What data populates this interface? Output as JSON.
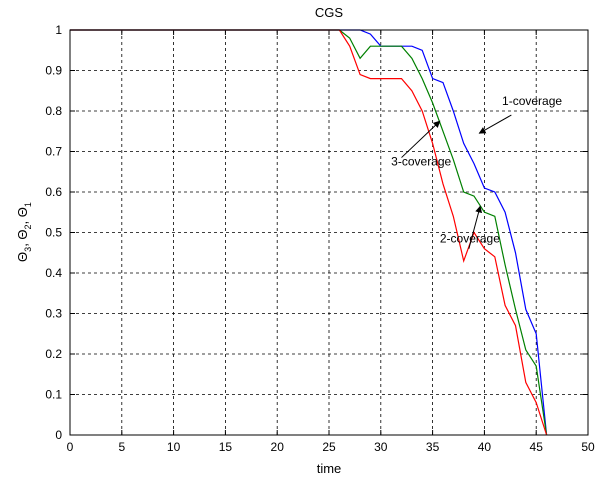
{
  "chart_data": {
    "type": "line",
    "title": "CGS",
    "xlabel": "time",
    "ylabel": "Θ3, Θ2, Θ1",
    "ylabel_parts": [
      {
        "base": "Θ",
        "sub": "3",
        "sep": ", "
      },
      {
        "base": "Θ",
        "sub": "2",
        "sep": ", "
      },
      {
        "base": "Θ",
        "sub": "1",
        "sep": ""
      }
    ],
    "xlim": [
      0,
      50
    ],
    "ylim": [
      0,
      1
    ],
    "xticks": [
      "0",
      "5",
      "10",
      "15",
      "20",
      "25",
      "30",
      "35",
      "40",
      "45",
      "50"
    ],
    "yticks": [
      "0",
      "0.1",
      "0.2",
      "0.3",
      "0.4",
      "0.5",
      "0.6",
      "0.7",
      "0.8",
      "0.9",
      "1"
    ],
    "grid": true,
    "series": [
      {
        "name": "1-coverage",
        "color": "#0000ff",
        "x": [
          0,
          26,
          28,
          29,
          30,
          31,
          32,
          33,
          34,
          35,
          36,
          37,
          38,
          39,
          40,
          41,
          42,
          43,
          44,
          45,
          46
        ],
        "y": [
          1,
          1,
          1,
          0.99,
          0.96,
          0.96,
          0.96,
          0.96,
          0.95,
          0.88,
          0.87,
          0.8,
          0.72,
          0.67,
          0.61,
          0.6,
          0.55,
          0.45,
          0.31,
          0.25,
          0.0
        ]
      },
      {
        "name": "2-coverage",
        "color": "#008000",
        "x": [
          0,
          26,
          27,
          28,
          29,
          30,
          31,
          32,
          33,
          34,
          35,
          36,
          37,
          38,
          39,
          40,
          41,
          42,
          43,
          44,
          45,
          46
        ],
        "y": [
          1,
          1,
          0.98,
          0.93,
          0.96,
          0.96,
          0.96,
          0.96,
          0.93,
          0.88,
          0.82,
          0.75,
          0.68,
          0.6,
          0.59,
          0.55,
          0.54,
          0.42,
          0.31,
          0.21,
          0.17,
          0.0
        ]
      },
      {
        "name": "3-coverage",
        "color": "#ff0000",
        "x": [
          0,
          26,
          27,
          28,
          29,
          30,
          31,
          32,
          33,
          34,
          35,
          36,
          37,
          38,
          39,
          40,
          41,
          42,
          43,
          44,
          45,
          46
        ],
        "y": [
          1,
          1,
          0.96,
          0.89,
          0.88,
          0.88,
          0.88,
          0.88,
          0.85,
          0.8,
          0.72,
          0.62,
          0.54,
          0.43,
          0.5,
          0.46,
          0.44,
          0.32,
          0.27,
          0.13,
          0.08,
          0.0
        ]
      }
    ],
    "annotations": [
      {
        "text": "1-coverage",
        "text_x": 44.6,
        "text_y": 0.815,
        "arrow_from": [
          42.6,
          0.79
        ],
        "arrow_to": [
          39.5,
          0.745
        ]
      },
      {
        "text": "3-coverage",
        "text_x": 33.9,
        "text_y": 0.665,
        "arrow_from": [
          32.0,
          0.685
        ],
        "arrow_to": [
          35.7,
          0.775
        ]
      },
      {
        "text": "2-coverage",
        "text_x": 38.6,
        "text_y": 0.475,
        "arrow_from": [
          38.5,
          0.46
        ],
        "arrow_to": [
          39.6,
          0.565
        ]
      }
    ]
  }
}
